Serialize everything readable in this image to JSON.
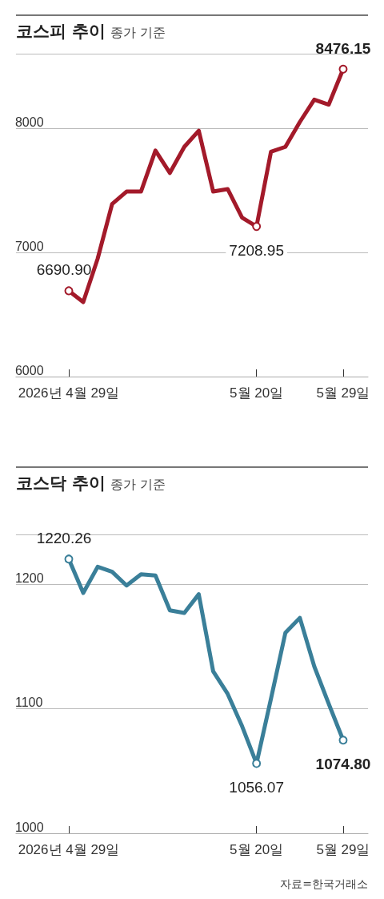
{
  "chart_data": [
    {
      "type": "line",
      "title": "코스피 추이",
      "subtitle": "종가 기준",
      "categories": [
        "2026년 4월 29일",
        null,
        null,
        null,
        null,
        null,
        null,
        null,
        null,
        null,
        null,
        null,
        null,
        "5월 20일",
        null,
        null,
        null,
        null,
        null,
        "5월 29일"
      ],
      "series": [
        {
          "color": "#a31a2a",
          "values": [
            6690.9,
            6600,
            6950,
            7390,
            7490,
            7490,
            7820,
            7640,
            7850,
            7980,
            7490,
            7510,
            7280,
            7208.95,
            7810,
            7850,
            8050,
            8230,
            8190,
            8476.15
          ],
          "value_labels": [
            "6690.90",
            null,
            null,
            null,
            null,
            null,
            null,
            null,
            null,
            null,
            null,
            null,
            null,
            "7208.95",
            null,
            null,
            null,
            null,
            null,
            "8476.15"
          ]
        }
      ],
      "ylim": [
        6000,
        8600
      ],
      "yticks": [
        6000,
        7000,
        8000
      ],
      "grid": "y"
    },
    {
      "type": "line",
      "title": "코스닥 추이",
      "subtitle": "종가 기준",
      "categories": [
        "2026년 4월 29일",
        null,
        null,
        null,
        null,
        null,
        null,
        null,
        null,
        null,
        null,
        null,
        null,
        "5월 20일",
        null,
        null,
        null,
        null,
        null,
        "5월 29일"
      ],
      "series": [
        {
          "color": "#3a7f99",
          "values": [
            1220.26,
            1193,
            1214,
            1210,
            1199,
            1208,
            1207,
            1179,
            1177,
            1192,
            1130,
            1112,
            1086,
            1056.07,
            1108,
            1161,
            1173,
            1134,
            1104,
            1074.8
          ],
          "value_labels": [
            "1220.26",
            null,
            null,
            null,
            null,
            null,
            null,
            null,
            null,
            null,
            null,
            null,
            null,
            "1056.07",
            null,
            null,
            null,
            null,
            null,
            "1074.80"
          ]
        }
      ],
      "ylim": [
        1000,
        1240
      ],
      "yticks": [
        1000,
        1100,
        1200
      ],
      "grid": "y",
      "annotations": [
        "자료=한국거래소"
      ]
    }
  ]
}
